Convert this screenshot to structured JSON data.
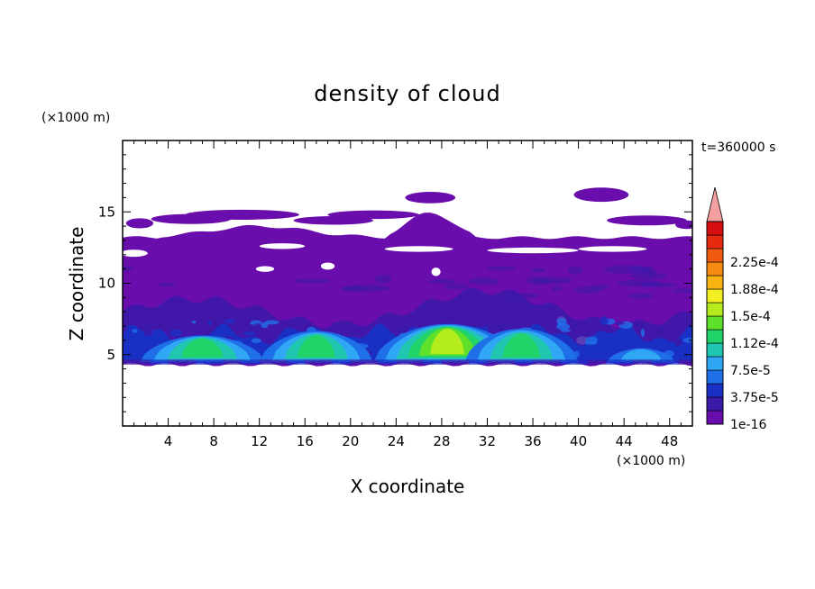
{
  "chart_data": {
    "type": "heatmap",
    "title": "density of cloud",
    "xlabel": "X coordinate",
    "ylabel": "Z coordinate",
    "x_unit": "(×1000 m)",
    "y_unit": "(×1000 m)",
    "time_label": "t=360000 s",
    "xlim": [
      0,
      50
    ],
    "ylim": [
      0,
      20
    ],
    "x_ticks": [
      "4",
      "8",
      "12",
      "16",
      "20",
      "24",
      "28",
      "32",
      "36",
      "40",
      "44",
      "48"
    ],
    "y_ticks": [
      "5",
      "10",
      "15"
    ],
    "colorbar": {
      "labels": [
        "1e-16",
        "3.75e-5",
        "7.5e-5",
        "1.12e-4",
        "1.5e-4",
        "1.88e-4",
        "2.25e-4"
      ],
      "colors": [
        "#6a0dad",
        "#3a1aa8",
        "#1a2fc4",
        "#1f6fe8",
        "#2fa7f4",
        "#20c6b0",
        "#22d36a",
        "#5fe02a",
        "#b4ec1e",
        "#f2ee20",
        "#f7b410",
        "#f78a10",
        "#f05a10",
        "#e52a10",
        "#d80f10",
        "#f5a0a0"
      ],
      "overflow_color": "#f5a0a0"
    },
    "cloud_layers": {
      "anvil_top_km": 13.2,
      "anvil_base_km": 9.5,
      "cloud_base_km": 4.3,
      "cores": [
        {
          "x": 7,
          "z": 5.5,
          "max_level": "1.12e-4"
        },
        {
          "x": 17,
          "z": 5.7,
          "max_level": "1.12e-4"
        },
        {
          "x": 28.5,
          "z": 6.0,
          "max_level": "1.5e-4"
        },
        {
          "x": 35,
          "z": 5.8,
          "max_level": "1.12e-4"
        }
      ]
    }
  }
}
